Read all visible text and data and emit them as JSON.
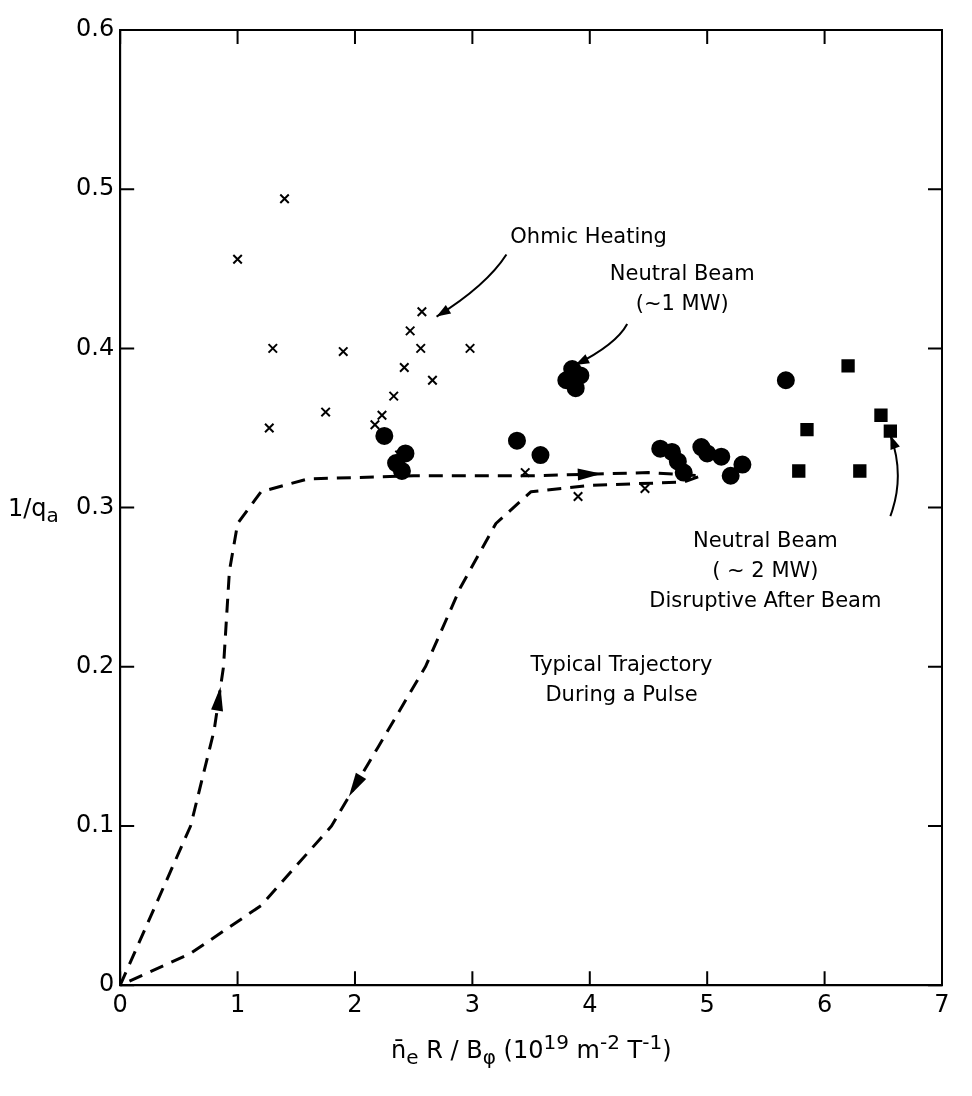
{
  "chart_data": {
    "type": "scatter",
    "xlabel": "n̄$_{e}$ R / B$_{φ}$ (10$^{19}$ m$^{-2}$ T$^{-1}$)",
    "ylabel": "1/q$_{a}$",
    "xlim": [
      0,
      7
    ],
    "xticks": [
      0,
      1,
      2,
      3,
      4,
      5,
      6,
      7
    ],
    "ylim": [
      0,
      0.6
    ],
    "yticks": [
      0,
      0.1,
      0.2,
      0.3,
      0.4,
      0.5,
      0.6
    ],
    "grid": false,
    "legend": false,
    "series": [
      {
        "marker": "cross",
        "color": "#000000",
        "x": [
          1.0,
          1.4,
          1.3,
          1.27,
          1.75,
          1.9,
          2.17,
          2.23,
          2.33,
          2.42,
          2.47,
          2.56,
          2.57,
          2.66,
          2.98,
          2.38,
          3.45,
          3.9,
          4.47
        ],
        "values": [
          0.456,
          0.494,
          0.4,
          0.35,
          0.36,
          0.398,
          0.352,
          0.358,
          0.37,
          0.388,
          0.411,
          0.4,
          0.423,
          0.38,
          0.4,
          0.333,
          0.322,
          0.307,
          0.312
        ]
      },
      {
        "marker": "circle",
        "color": "#000000",
        "x": [
          2.25,
          2.35,
          2.43,
          2.4,
          3.8,
          3.85,
          3.92,
          3.88,
          3.38,
          3.58,
          4.6,
          4.7,
          4.75,
          4.8,
          4.95,
          5.0,
          5.12,
          5.2,
          5.3,
          5.67
        ],
        "values": [
          0.345,
          0.328,
          0.334,
          0.323,
          0.38,
          0.387,
          0.383,
          0.375,
          0.342,
          0.333,
          0.337,
          0.335,
          0.329,
          0.322,
          0.338,
          0.334,
          0.332,
          0.32,
          0.327,
          0.38
        ]
      },
      {
        "marker": "square",
        "color": "#000000",
        "x": [
          5.78,
          5.85,
          6.2,
          6.3,
          6.48,
          6.56
        ],
        "values": [
          0.323,
          0.349,
          0.389,
          0.323,
          0.358,
          0.348
        ]
      }
    ],
    "annotations": [
      "Ohmic Heating",
      {
        "text": "Neutral Beam\n(~1 MW)",
        "x": 3.85,
        "y": 0.387
      },
      {
        "text": "Neutral Beam\n( ~ 2 MW)\nDisruptive After Beam",
        "x": 6.56,
        "y": 0.348
      },
      "Typical Trajectory\nDuring a Pulse"
    ]
  }
}
